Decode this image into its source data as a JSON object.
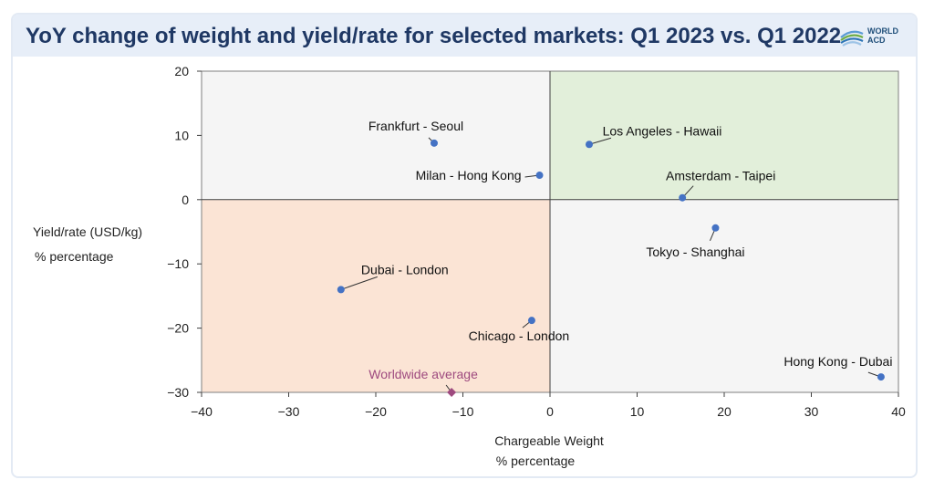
{
  "title": "YoY change of weight and yield/rate for selected markets: Q1 2023 vs. Q1 2022",
  "logo_text": [
    "WORLD",
    "ACD"
  ],
  "colors": {
    "title": "#1f3864",
    "header_bg": "#e7eef8",
    "q1_green": "#e2efda",
    "q3_orange": "#fbe4d5",
    "q_grey": "#f5f5f5",
    "point_blue": "#4472c4",
    "average_purple": "#9e4a7f"
  },
  "chart_data": {
    "type": "scatter",
    "title": "YoY change of weight and yield/rate for selected markets: Q1 2023 vs. Q1 2022",
    "xlabel": [
      "Chargeable Weight",
      "% percentage"
    ],
    "ylabel": [
      "Yield/rate (USD/kg)",
      "% percentage"
    ],
    "xlim": [
      -40,
      40
    ],
    "ylim": [
      -30,
      20
    ],
    "xticks": [
      -40,
      -30,
      -20,
      -10,
      0,
      10,
      20,
      30,
      40
    ],
    "yticks": [
      20,
      10,
      0,
      -10,
      -20,
      -30
    ],
    "points": [
      {
        "label": "Frankfurt - Seoul",
        "x": -13.3,
        "y": 8.8
      },
      {
        "label": "Los Angeles - Hawaii",
        "x": 4.5,
        "y": 8.6
      },
      {
        "label": "Milan - Hong Kong",
        "x": -1.2,
        "y": 3.8
      },
      {
        "label": "Amsterdam - Taipei",
        "x": 15.2,
        "y": 0.3
      },
      {
        "label": "Tokyo - Shanghai",
        "x": 19.0,
        "y": -4.4
      },
      {
        "label": "Dubai - London",
        "x": -24.0,
        "y": -14.0
      },
      {
        "label": "Chicago - London",
        "x": -2.1,
        "y": -18.8
      },
      {
        "label": "Hong Kong - Dubai",
        "x": 38.0,
        "y": -27.6
      }
    ],
    "average": {
      "label": "Worldwide average",
      "x": -11.3,
      "y": -30.0
    }
  }
}
